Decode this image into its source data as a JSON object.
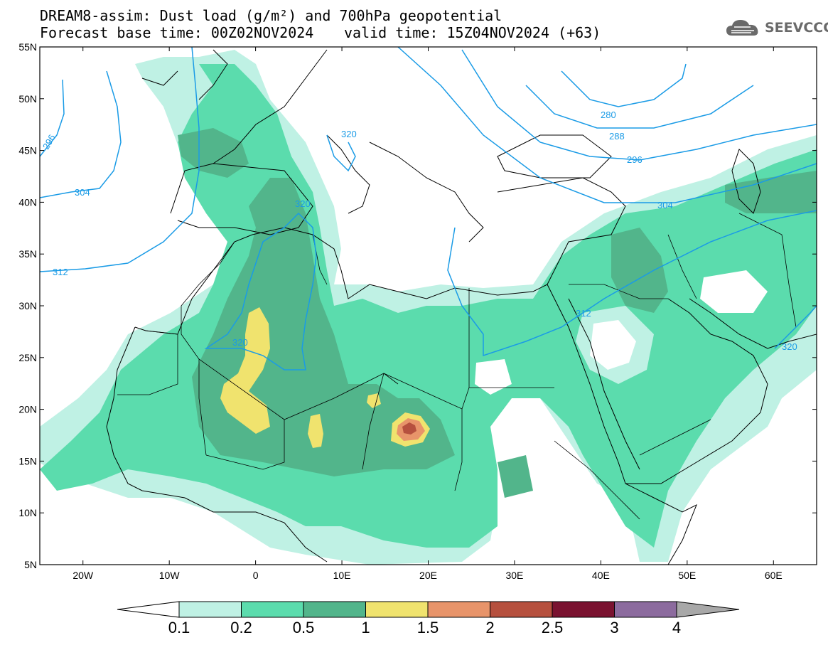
{
  "header": {
    "title_line1": "DREAM8-assim: Dust load (g/m²) and 700hPa geopotential",
    "title_line2_base": "Forecast base time: 00Z02NOV2024",
    "title_line2_valid": "valid time: 15Z04NOV2024 (+63)",
    "logo_text": "SEEVCCC",
    "logo_icon": "cloud-logo-icon"
  },
  "map": {
    "lon_range": [
      -25,
      65
    ],
    "lat_range": [
      5,
      55
    ],
    "lat_ticks": [
      "55N",
      "50N",
      "45N",
      "40N",
      "35N",
      "30N",
      "25N",
      "20N",
      "15N",
      "10N",
      "5N"
    ],
    "lon_ticks": [
      "20W",
      "10W",
      "0",
      "10E",
      "20E",
      "30E",
      "40E",
      "50E",
      "60E"
    ],
    "contour_color": "#1a9be6",
    "contour_labels": [
      "296",
      "304",
      "312",
      "320",
      "320",
      "320",
      "280",
      "288",
      "296",
      "304",
      "312",
      "320"
    ],
    "max_value_location": "central Chad near 17.5E 18N"
  },
  "colorbar": {
    "levels": [
      "0.1",
      "0.2",
      "0.5",
      "1",
      "1.5",
      "2",
      "2.5",
      "3",
      "4"
    ],
    "colors": [
      "#ffffff",
      "#bff1e4",
      "#5bdcad",
      "#52b58b",
      "#f0e36e",
      "#e8946a",
      "#b6503e",
      "#7a1230",
      "#8c6b9e",
      "#a8a8a8"
    ]
  }
}
